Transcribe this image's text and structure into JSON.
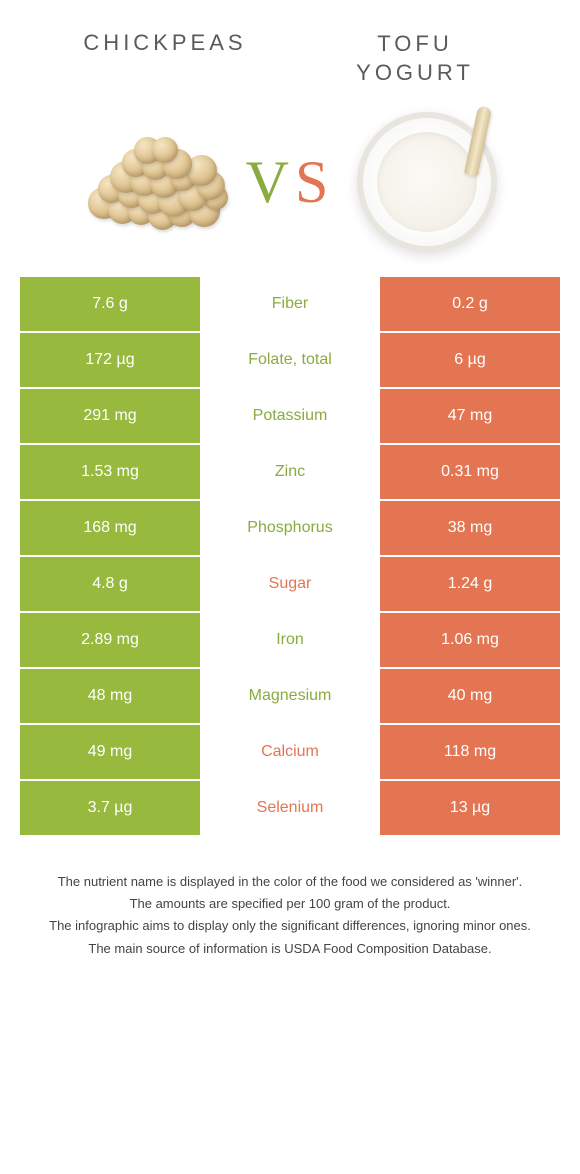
{
  "header": {
    "left_title": "CHICKPEAS",
    "right_title": "TOFU\nYOGURT",
    "vs_v": "V",
    "vs_s": "S"
  },
  "colors": {
    "green": "#96b93e",
    "orange": "#e37552",
    "green_text": "#8aab3f",
    "orange_text": "#e37552"
  },
  "rows": [
    {
      "left": "7.6 g",
      "label": "Fiber",
      "right": "0.2 g",
      "winner": "green"
    },
    {
      "left": "172 µg",
      "label": "Folate, total",
      "right": "6 µg",
      "winner": "green"
    },
    {
      "left": "291 mg",
      "label": "Potassium",
      "right": "47 mg",
      "winner": "green"
    },
    {
      "left": "1.53 mg",
      "label": "Zinc",
      "right": "0.31 mg",
      "winner": "green"
    },
    {
      "left": "168 mg",
      "label": "Phosphorus",
      "right": "38 mg",
      "winner": "green"
    },
    {
      "left": "4.8 g",
      "label": "Sugar",
      "right": "1.24 g",
      "winner": "orange"
    },
    {
      "left": "2.89 mg",
      "label": "Iron",
      "right": "1.06 mg",
      "winner": "green"
    },
    {
      "left": "48 mg",
      "label": "Magnesium",
      "right": "40 mg",
      "winner": "green"
    },
    {
      "left": "49 mg",
      "label": "Calcium",
      "right": "118 mg",
      "winner": "orange"
    },
    {
      "left": "3.7 µg",
      "label": "Selenium",
      "right": "13 µg",
      "winner": "orange"
    }
  ],
  "footer": {
    "line1": "The nutrient name is displayed in the color of the food we considered as 'winner'.",
    "line2": "The amounts are specified per 100 gram of the product.",
    "line3": "The infographic aims to display only the significant differences, ignoring minor ones.",
    "line4": "The main source of information is USDA Food Composition Database."
  }
}
